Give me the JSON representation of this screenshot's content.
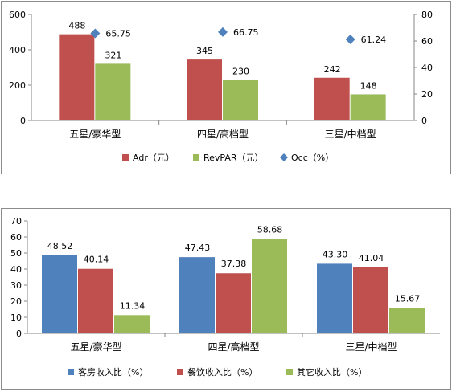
{
  "chart_data": [
    {
      "type": "bar",
      "categories": [
        "五星/豪华型",
        "四星/高档型",
        "三星/中档型"
      ],
      "series": [
        {
          "name": "Adr（元）",
          "axis": "left",
          "kind": "bar",
          "color": "#c0504d",
          "values": [
            488,
            345,
            242
          ]
        },
        {
          "name": "RevPAR（元）",
          "axis": "left",
          "kind": "bar",
          "color": "#9bbb59",
          "values": [
            321,
            230,
            148
          ]
        },
        {
          "name": "Occ（%）",
          "axis": "right",
          "kind": "marker",
          "color": "#4f81bd",
          "values": [
            65.75,
            66.75,
            61.24
          ]
        }
      ],
      "ylim": [
        0,
        600
      ],
      "yticks": [
        0,
        200,
        400,
        600
      ],
      "y2lim": [
        0,
        80
      ],
      "y2ticks": [
        0,
        20,
        40,
        60,
        80
      ],
      "legend": "bottom",
      "grid": false
    },
    {
      "type": "bar",
      "categories": [
        "五星/豪华型",
        "四星/高档型",
        "三星/中档型"
      ],
      "series": [
        {
          "name": "客房收入比（%）",
          "color": "#4f81bd",
          "values": [
            48.52,
            47.43,
            43.3
          ]
        },
        {
          "name": "餐饮收入比（%）",
          "color": "#c0504d",
          "values": [
            40.14,
            37.38,
            41.04
          ]
        },
        {
          "name": "其它收入比（%）",
          "color": "#9bbb59",
          "values": [
            11.34,
            58.68,
            15.67
          ]
        }
      ],
      "ylim": [
        0,
        70
      ],
      "yticks": [
        0,
        10,
        20,
        30,
        40,
        50,
        60,
        70
      ],
      "legend": "bottom",
      "grid": false
    }
  ]
}
